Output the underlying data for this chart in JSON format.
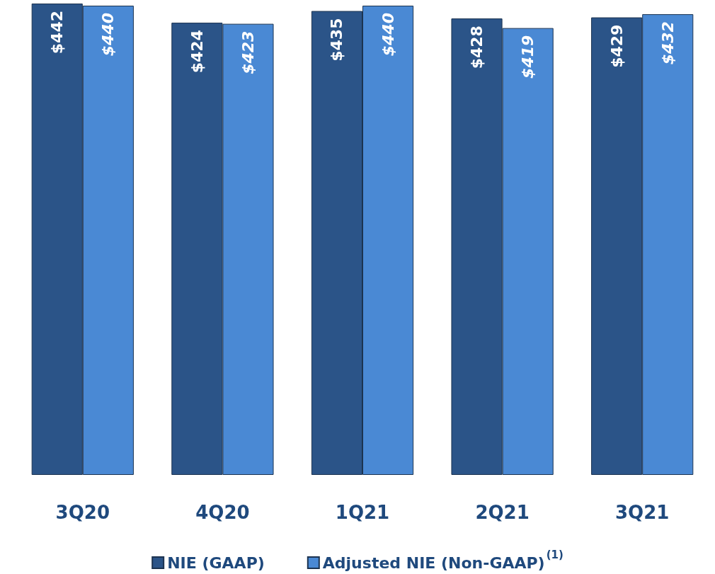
{
  "chart_data": {
    "type": "bar",
    "categories": [
      "3Q20",
      "4Q20",
      "1Q21",
      "2Q21",
      "3Q21"
    ],
    "series": [
      {
        "name": "NIE (GAAP)",
        "color": "#2b5488",
        "values": [
          442,
          424,
          435,
          428,
          429
        ],
        "value_labels": [
          "$442",
          "$424",
          "$435",
          "$428",
          "$429"
        ]
      },
      {
        "name": "Adjusted NIE (Non-GAAP)$^{(1)}$",
        "color": "#4a89d4",
        "values": [
          440,
          423,
          440,
          419,
          432
        ],
        "value_labels": [
          "$440",
          "$423",
          "$440",
          "$419",
          "$432"
        ]
      }
    ],
    "legend": "bottom"
  }
}
